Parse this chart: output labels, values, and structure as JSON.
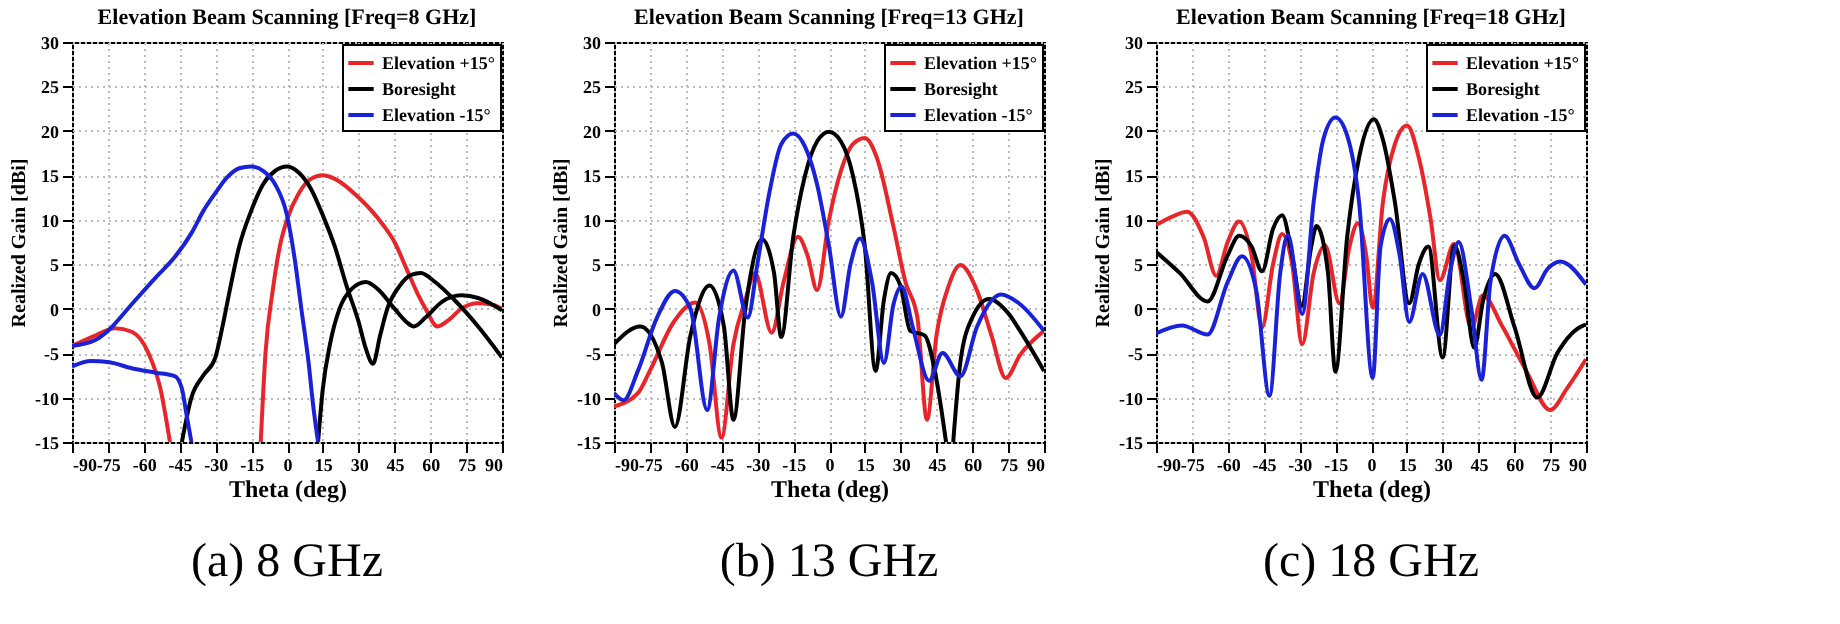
{
  "chart_data": [
    {
      "type": "line",
      "title": "Elevation Beam Scanning [Freq=8 GHz]",
      "xlabel": "Theta (deg)",
      "ylabel": "Realized Gain [dBi]",
      "xlim": [
        -90,
        90
      ],
      "ylim": [
        -15,
        30
      ],
      "xticks": [
        -90,
        -75,
        -60,
        -45,
        -30,
        -15,
        0,
        15,
        30,
        45,
        60,
        75,
        90
      ],
      "yticks": [
        -15,
        -10,
        -5,
        0,
        5,
        10,
        15,
        20,
        25,
        30
      ],
      "grid": true,
      "legend": "top right",
      "line_style": "solid",
      "annotations": [
        "(a)  8  GHz"
      ],
      "series": [
        {
          "name": "Elevation +15°",
          "color": "#e8262a",
          "x": [
            -90,
            -80,
            -72,
            -65,
            -58,
            -53,
            -49,
            null,
            -11,
            -9,
            -6,
            -3,
            0,
            5,
            10,
            15,
            20,
            30,
            40,
            45,
            50,
            55,
            58,
            63,
            68,
            73,
            80,
            85,
            90
          ],
          "values": [
            -4.2,
            -3,
            -2.2,
            -2.6,
            -5,
            -9,
            -15,
            null,
            -15,
            -5,
            2,
            7,
            10,
            13,
            14.6,
            15,
            14.6,
            12.5,
            9.5,
            7.5,
            4.5,
            1.5,
            0,
            -2,
            -1.2,
            0,
            0.6,
            0.5,
            0
          ]
        },
        {
          "name": "Boresight",
          "color": "#000000",
          "x": [
            -44,
            -40,
            -35,
            -30,
            -27,
            -24,
            -20,
            -15,
            -10,
            -5,
            0,
            5,
            10,
            15,
            20,
            25,
            30,
            33,
            36,
            39,
            42,
            47,
            52,
            56,
            62,
            70,
            80,
            90,
            null,
            13,
            15,
            18,
            22,
            27,
            33,
            38,
            45,
            50,
            53,
            58,
            65,
            73,
            80,
            85,
            90
          ],
          "values": [
            -15,
            -10,
            -7.5,
            -5.5,
            -2,
            2,
            7,
            11,
            14,
            15.5,
            16,
            15.3,
            13.5,
            10.5,
            7,
            2.5,
            -1.5,
            -4.5,
            -6.2,
            -3,
            0,
            2.5,
            3.8,
            4,
            3,
            1,
            -2,
            -5.5,
            null,
            -15,
            -9,
            -4,
            0,
            2.2,
            3,
            2.2,
            0,
            -1.5,
            -2,
            -1,
            0.8,
            1.5,
            1.2,
            0.6,
            -0.2
          ]
        },
        {
          "name": "Elevation -15°",
          "color": "#1a22d8",
          "x": [
            -90,
            -80,
            -75,
            -65,
            -55,
            -47,
            -40,
            -35,
            -30,
            -25,
            -20,
            -15,
            -10,
            -5,
            0,
            3,
            6,
            9,
            11,
            13,
            null,
            -90,
            -82,
            -75,
            -65,
            -55,
            -47,
            -44,
            -42,
            -40
          ],
          "values": [
            -4.2,
            -3.5,
            -2.5,
            0.5,
            3.5,
            5.8,
            8.5,
            11,
            13,
            14.8,
            15.8,
            16,
            15.5,
            14,
            10.5,
            6,
            0,
            -6,
            -11,
            -15,
            null,
            -6.5,
            -5.9,
            -6,
            -6.7,
            -7.2,
            -7.6,
            -9,
            -12,
            -15
          ]
        }
      ]
    },
    {
      "type": "line",
      "title": "Elevation Beam Scanning [Freq=13 GHz]",
      "xlabel": "Theta (deg)",
      "ylabel": "Realized Gain [dBi]",
      "xlim": [
        -90,
        90
      ],
      "ylim": [
        -15,
        30
      ],
      "xticks": [
        -90,
        -75,
        -60,
        -45,
        -30,
        -15,
        0,
        15,
        30,
        45,
        60,
        75,
        90
      ],
      "yticks": [
        -15,
        -10,
        -5,
        0,
        5,
        10,
        15,
        20,
        25,
        30
      ],
      "grid": true,
      "legend": "top right",
      "line_style": "solid",
      "annotations": [
        "(b)  13  GHz"
      ],
      "series": [
        {
          "name": "Elevation +15°",
          "color": "#e8262a",
          "x": [
            -90,
            -80,
            -75,
            -65,
            -56,
            -50,
            -45,
            -40,
            -35,
            -31,
            -24,
            -19,
            -13,
            -9,
            -5,
            0,
            5,
            10,
            15,
            20,
            27,
            32,
            37,
            41,
            45,
            50,
            55,
            62,
            68,
            74,
            80,
            90
          ],
          "values": [
            -11,
            -9.5,
            -7,
            -1.5,
            0.7,
            -4,
            -14.5,
            -4,
            1,
            4,
            -2.7,
            3,
            8.1,
            6,
            2.1,
            10,
            15.5,
            18.5,
            19.2,
            17,
            9.2,
            3,
            -1,
            -12.5,
            -3,
            2.5,
            4.9,
            2,
            -3,
            -7.8,
            -5.2,
            -2.5
          ]
        },
        {
          "name": "Boresight",
          "color": "#000000",
          "x": [
            -90,
            -79,
            -70,
            -64.5,
            -58,
            -50,
            -44,
            -40,
            -35,
            -28,
            -23,
            -20,
            -15,
            -10,
            -5,
            0,
            5,
            10,
            15,
            19.5,
            23,
            26,
            30,
            34,
            40,
            45,
            49,
            null,
            52,
            55,
            60,
            67,
            75,
            80,
            90
          ],
          "values": [
            -4,
            -2,
            -6,
            -13.3,
            -3,
            2.6,
            -2,
            -12.5,
            0,
            7.8,
            4,
            -3.2,
            8,
            15,
            18.8,
            19.9,
            18.8,
            15,
            7,
            -7,
            1,
            4,
            2.5,
            -2.5,
            -3,
            -8,
            -15,
            null,
            -15,
            -6,
            -1,
            1.1,
            -0.5,
            -2.5,
            -7
          ]
        },
        {
          "name": "Elevation -15°",
          "color": "#1a22d8",
          "x": [
            -90,
            -86,
            -80,
            -72,
            -64.5,
            -58,
            -51,
            -46,
            -40,
            -34,
            -30,
            -25,
            -20,
            -15,
            -10,
            -5,
            0,
            5,
            9,
            13,
            18,
            23,
            27,
            30.4,
            35,
            41.9,
            47.5,
            55,
            62,
            72,
            80,
            90
          ],
          "values": [
            -9.5,
            -10.3,
            -7,
            -1,
            2,
            0,
            -11.4,
            -1,
            4.3,
            -1,
            5,
            13,
            18.5,
            19.7,
            18.2,
            14,
            7,
            -0.9,
            5,
            7.9,
            3,
            -6.1,
            0.5,
            2.5,
            -2,
            -8.1,
            -5,
            -7.6,
            -2,
            1.6,
            0.5,
            -2.5
          ]
        }
      ]
    },
    {
      "type": "line",
      "title": "Elevation Beam Scanning [Freq=18 GHz]",
      "xlabel": "Theta (deg)",
      "ylabel": "Realized Gain [dBi]",
      "xlim": [
        -90,
        90
      ],
      "ylim": [
        -15,
        30
      ],
      "xticks": [
        -90,
        -75,
        -60,
        -45,
        -30,
        -15,
        0,
        15,
        30,
        45,
        60,
        75,
        90
      ],
      "yticks": [
        -15,
        -10,
        -5,
        0,
        5,
        10,
        15,
        20,
        25,
        30
      ],
      "grid": true,
      "legend": "top right",
      "line_style": "solid",
      "annotations": [
        "(c)  18  GHz"
      ],
      "series": [
        {
          "name": "Elevation +15°",
          "color": "#e8262a",
          "x": [
            -90,
            -82,
            -77,
            -70,
            -64.8,
            -60,
            -55.2,
            -50,
            -45.6,
            -41,
            -37.2,
            -33,
            -28.8,
            -24,
            -19.2,
            -13.2,
            -9,
            -5.5,
            -2,
            0.7,
            5,
            10,
            15.1,
            20,
            25,
            28.8,
            34.8,
            42,
            46.8,
            55,
            65,
            75,
            82,
            90
          ],
          "values": [
            9.4,
            10.5,
            10.9,
            8,
            3.7,
            7.5,
            9.8,
            6,
            -2.1,
            5,
            8.4,
            5,
            -4,
            4,
            7.1,
            0.6,
            7,
            9.6,
            6,
            0.1,
            12,
            18.5,
            20.6,
            17,
            10,
            3.2,
            7.3,
            -2.2,
            1.5,
            -2,
            -7,
            -11.4,
            -9,
            -5.7
          ]
        },
        {
          "name": "Boresight",
          "color": "#000000",
          "x": [
            -90,
            -80,
            -68.4,
            -60,
            -55.2,
            -50,
            -45.6,
            -41,
            -37.2,
            -33,
            -29,
            -25,
            -22.8,
            -18,
            -14.9,
            -10,
            -5,
            1.2,
            5,
            10,
            16,
            20,
            24,
            30,
            34.8,
            39,
            43.2,
            47,
            52,
            60,
            69.6,
            78,
            88.8,
            90
          ],
          "values": [
            6.4,
            4,
            0.8,
            6,
            8.2,
            7,
            4.2,
            9,
            10.5,
            6,
            0.3,
            7,
            9.3,
            4,
            -7.1,
            8,
            17,
            21.3,
            19,
            12,
            0.6,
            5,
            7,
            -5.5,
            7.1,
            3,
            -4.4,
            1,
            3.9,
            -2,
            -10,
            -5,
            -1.9,
            -1.8
          ]
        },
        {
          "name": "Elevation -15°",
          "color": "#1a22d8",
          "x": [
            -90,
            -79.2,
            -68.4,
            -60,
            -54,
            -48,
            -42.5,
            -38,
            -34.8,
            -28.8,
            -24,
            -20,
            -14.9,
            -10,
            -5,
            0.7,
            4,
            7.9,
            12,
            16,
            21.6,
            28.8,
            33,
            36.7,
            42,
            46.3,
            50,
            55.9,
            62,
            68.4,
            74,
            79.2,
            90
          ],
          "values": [
            -2.8,
            -1.9,
            -2.9,
            3,
            5.9,
            2,
            -9.8,
            4,
            8.3,
            -0.6,
            12,
            19,
            21.5,
            19.5,
            12,
            -7.8,
            7,
            10.1,
            6,
            -1.5,
            3.9,
            -3,
            4,
            7.5,
            0,
            -8,
            3,
            8.2,
            5,
            2.3,
            4.5,
            5.3,
            2.7
          ]
        }
      ]
    }
  ]
}
